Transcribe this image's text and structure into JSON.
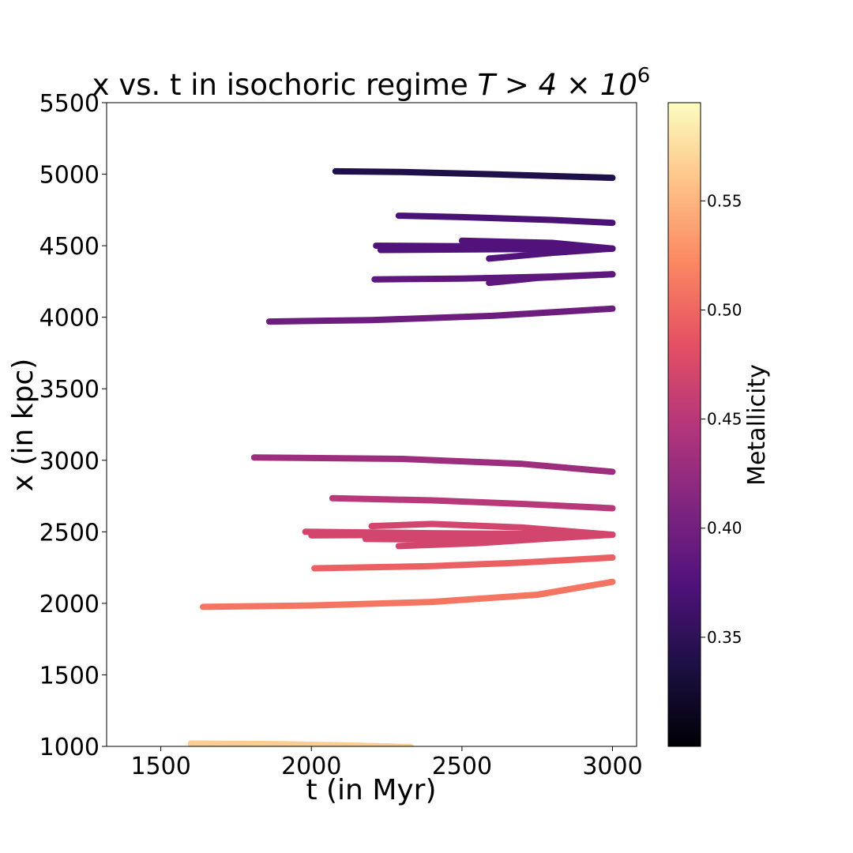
{
  "chart_data": {
    "type": "scatter",
    "title_main": "x vs. t in isochoric regime ",
    "title_math": "T > 4 × 10",
    "title_exponent": "6",
    "xlabel": "t (in Myr)",
    "ylabel": "x (in kpc)",
    "xlim": [
      1320,
      3080
    ],
    "ylim": [
      1000,
      5500
    ],
    "xticks": [
      "1500",
      "2000",
      "2500",
      "3000"
    ],
    "yticks": [
      "1000",
      "1500",
      "2000",
      "2500",
      "3000",
      "3500",
      "4000",
      "4500",
      "5000",
      "5500"
    ],
    "grid": false,
    "colorbar": {
      "label": "Metallicity",
      "colormap": "magma",
      "range": [
        0.3,
        0.595
      ],
      "ticks": [
        "0.35",
        "0.40",
        "0.45",
        "0.50",
        "0.55"
      ]
    },
    "series": [
      {
        "metallicity": 0.34,
        "points": [
          [
            2080,
            5020
          ],
          [
            2300,
            5015
          ],
          [
            2600,
            5000
          ],
          [
            3000,
            4975
          ]
        ]
      },
      {
        "metallicity": 0.37,
        "points": [
          [
            2290,
            4710
          ],
          [
            2500,
            4700
          ],
          [
            2800,
            4680
          ],
          [
            3000,
            4660
          ]
        ]
      },
      {
        "metallicity": 0.375,
        "points": [
          [
            2215,
            4500
          ],
          [
            2600,
            4495
          ],
          [
            2850,
            4485
          ],
          [
            3000,
            4480
          ]
        ]
      },
      {
        "metallicity": 0.375,
        "points": [
          [
            2230,
            4470
          ],
          [
            2600,
            4475
          ],
          [
            2850,
            4478
          ],
          [
            3000,
            4480
          ]
        ]
      },
      {
        "metallicity": 0.375,
        "points": [
          [
            2500,
            4535
          ],
          [
            2800,
            4520
          ],
          [
            3000,
            4480
          ]
        ]
      },
      {
        "metallicity": 0.375,
        "points": [
          [
            2590,
            4410
          ],
          [
            2800,
            4450
          ],
          [
            3000,
            4480
          ]
        ]
      },
      {
        "metallicity": 0.385,
        "points": [
          [
            2210,
            4265
          ],
          [
            2500,
            4270
          ],
          [
            2800,
            4285
          ],
          [
            3000,
            4300
          ]
        ]
      },
      {
        "metallicity": 0.385,
        "points": [
          [
            2590,
            4240
          ],
          [
            2750,
            4275
          ],
          [
            3000,
            4300
          ]
        ]
      },
      {
        "metallicity": 0.395,
        "points": [
          [
            1860,
            3970
          ],
          [
            2200,
            3980
          ],
          [
            2600,
            4010
          ],
          [
            3000,
            4060
          ]
        ]
      },
      {
        "metallicity": 0.43,
        "points": [
          [
            1810,
            3020
          ],
          [
            2300,
            3010
          ],
          [
            2700,
            2975
          ],
          [
            3000,
            2920
          ]
        ]
      },
      {
        "metallicity": 0.45,
        "points": [
          [
            2070,
            2735
          ],
          [
            2400,
            2720
          ],
          [
            2700,
            2695
          ],
          [
            3000,
            2665
          ]
        ]
      },
      {
        "metallicity": 0.47,
        "points": [
          [
            2200,
            2540
          ],
          [
            2400,
            2555
          ],
          [
            2700,
            2530
          ],
          [
            3000,
            2480
          ]
        ]
      },
      {
        "metallicity": 0.47,
        "points": [
          [
            1980,
            2500
          ],
          [
            2400,
            2490
          ],
          [
            2700,
            2485
          ],
          [
            3000,
            2480
          ]
        ]
      },
      {
        "metallicity": 0.47,
        "points": [
          [
            2000,
            2475
          ],
          [
            2400,
            2480
          ],
          [
            2700,
            2480
          ],
          [
            3000,
            2480
          ]
        ]
      },
      {
        "metallicity": 0.47,
        "points": [
          [
            2180,
            2450
          ],
          [
            2500,
            2445
          ],
          [
            2750,
            2460
          ],
          [
            3000,
            2480
          ]
        ]
      },
      {
        "metallicity": 0.47,
        "points": [
          [
            2290,
            2400
          ],
          [
            2550,
            2420
          ],
          [
            2800,
            2455
          ],
          [
            3000,
            2480
          ]
        ]
      },
      {
        "metallicity": 0.495,
        "points": [
          [
            2010,
            2245
          ],
          [
            2400,
            2260
          ],
          [
            2700,
            2285
          ],
          [
            3000,
            2320
          ]
        ]
      },
      {
        "metallicity": 0.51,
        "points": [
          [
            1640,
            1975
          ],
          [
            2000,
            1985
          ],
          [
            2400,
            2010
          ],
          [
            2750,
            2060
          ],
          [
            3000,
            2150
          ]
        ]
      },
      {
        "metallicity": 0.565,
        "points": [
          [
            1600,
            1020
          ],
          [
            1900,
            1015
          ],
          [
            2150,
            1005
          ],
          [
            2330,
            995
          ]
        ]
      }
    ]
  }
}
